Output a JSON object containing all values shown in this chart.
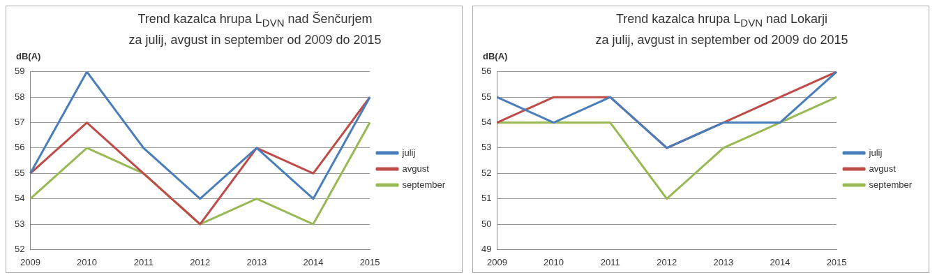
{
  "chart_data": [
    {
      "type": "line",
      "title": "Trend kazalca hrupa L$_{DVN}$ nad Šenčurjem",
      "subtitle": "za julij, avgust in september od 2009 do 2015",
      "ylabel": "dB(A)",
      "categories": [
        "2009",
        "2010",
        "2011",
        "2012",
        "2013",
        "2014",
        "2015"
      ],
      "ylim": [
        52,
        59
      ],
      "yticks": [
        52,
        53,
        54,
        55,
        56,
        57,
        58,
        59
      ],
      "grid": "y",
      "legend": "right",
      "marker": "none",
      "line_style": "solid",
      "series": [
        {
          "name": "julij",
          "color": "#4a7ebb",
          "values": [
            55,
            59,
            56,
            54,
            56,
            54,
            58
          ]
        },
        {
          "name": "avgust",
          "color": "#be4b48",
          "values": [
            55,
            57,
            55,
            53,
            56,
            55,
            58
          ]
        },
        {
          "name": "september",
          "color": "#98b954",
          "values": [
            54,
            56,
            55,
            53,
            54,
            53,
            57
          ]
        }
      ]
    },
    {
      "type": "line",
      "title": "Trend kazalca hrupa L$_{DVN}$  nad Lokarji",
      "subtitle": "za julij, avgust in september od 2009 do 2015",
      "ylabel": "dB(A)",
      "categories": [
        "2009",
        "2010",
        "2011",
        "2012",
        "2013",
        "2014",
        "2015"
      ],
      "ylim": [
        49,
        56
      ],
      "yticks": [
        49,
        50,
        51,
        52,
        53,
        54,
        55,
        56
      ],
      "grid": "y",
      "legend": "right",
      "marker": "none",
      "line_style": "solid",
      "series": [
        {
          "name": "julij",
          "color": "#4a7ebb",
          "values": [
            55,
            54,
            55,
            53,
            54,
            54,
            56
          ]
        },
        {
          "name": "avgust",
          "color": "#be4b48",
          "values": [
            54,
            55,
            55,
            53,
            54,
            55,
            56
          ]
        },
        {
          "name": "september",
          "color": "#98b954",
          "values": [
            54,
            54,
            54,
            51,
            53,
            54,
            55
          ]
        }
      ]
    }
  ]
}
